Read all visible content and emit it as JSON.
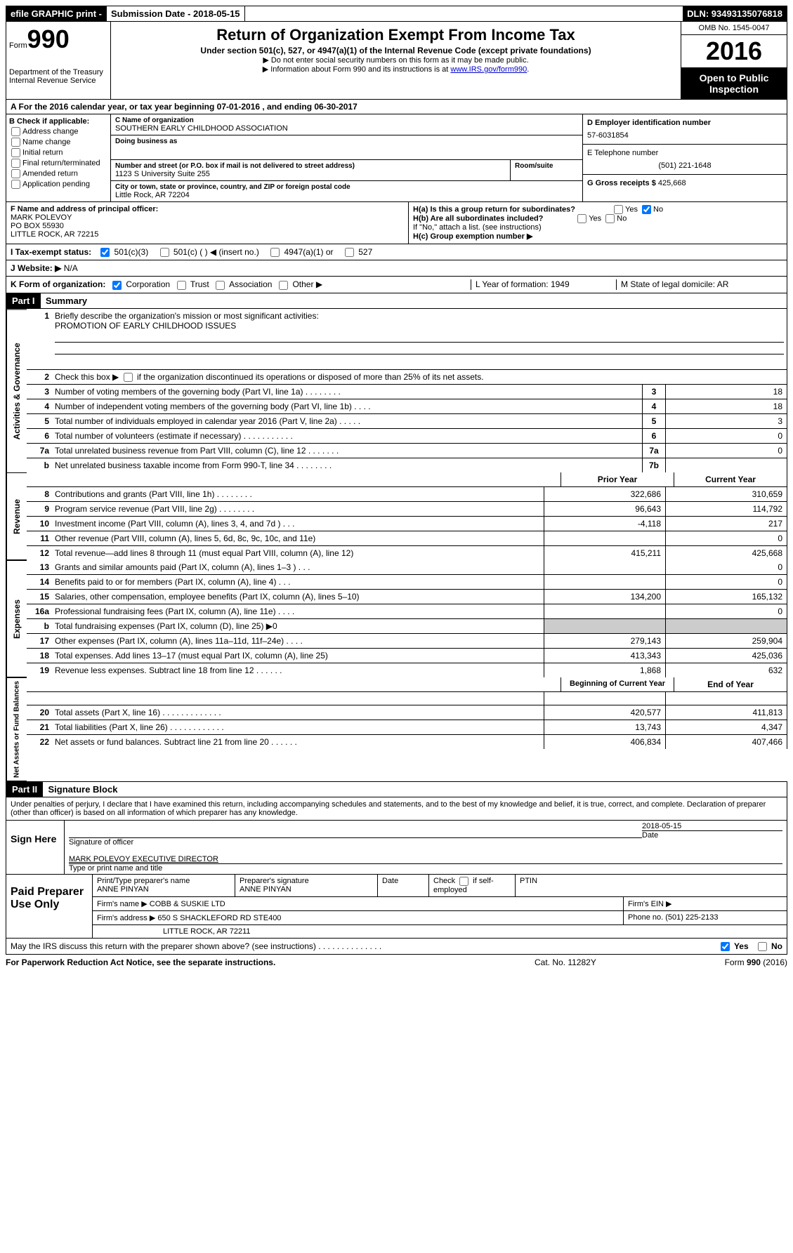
{
  "top": {
    "efile": "efile GRAPHIC print -",
    "submission_label": "Submission Date - 2018-05-15",
    "dln": "DLN: 93493135076818"
  },
  "header": {
    "form_prefix": "Form",
    "form_number": "990",
    "dept1": "Department of the Treasury",
    "dept2": "Internal Revenue Service",
    "title": "Return of Organization Exempt From Income Tax",
    "subtitle": "Under section 501(c), 527, or 4947(a)(1) of the Internal Revenue Code (except private foundations)",
    "note1": "▶ Do not enter social security numbers on this form as it may be made public.",
    "note2_pre": "▶ Information about Form 990 and its instructions is at ",
    "note2_link": "www.IRS.gov/form990",
    "omb": "OMB No. 1545-0047",
    "year": "2016",
    "open1": "Open to Public",
    "open2": "Inspection"
  },
  "section_a": "A  For the 2016 calendar year, or tax year beginning 07-01-2016   , and ending 06-30-2017",
  "box_b": {
    "title": "B Check if applicable:",
    "opts": [
      "Address change",
      "Name change",
      "Initial return",
      "Final return/terminated",
      "Amended return",
      "Application pending"
    ]
  },
  "box_c": {
    "name_label": "C Name of organization",
    "name": "SOUTHERN EARLY CHILDHOOD ASSOCIATION",
    "dba_label": "Doing business as",
    "street_label": "Number and street (or P.O. box if mail is not delivered to street address)",
    "room_label": "Room/suite",
    "street": "1123 S University Suite 255",
    "city_label": "City or town, state or province, country, and ZIP or foreign postal code",
    "city": "Little Rock, AR  72204"
  },
  "box_d": {
    "ein_label": "D Employer identification number",
    "ein": "57-6031854",
    "phone_label": "E Telephone number",
    "phone": "(501) 221-1648",
    "gross_label": "G Gross receipts $ ",
    "gross": "425,668"
  },
  "box_f": {
    "label": "F  Name and address of principal officer:",
    "name": "MARK POLEVOY",
    "addr1": "PO BOX 55930",
    "addr2": "LITTLE ROCK, AR  72215"
  },
  "box_h": {
    "ha": "H(a)  Is this a group return for subordinates?",
    "hb": "H(b)  Are all subordinates included?",
    "hb_note": "If \"No,\" attach a list. (see instructions)",
    "hc": "H(c)  Group exemption number ▶",
    "yes": "Yes",
    "no": "No"
  },
  "row_i": {
    "label": "I  Tax-exempt status:",
    "opt1": "501(c)(3)",
    "opt2": "501(c) (   ) ◀ (insert no.)",
    "opt3": "4947(a)(1) or",
    "opt4": "527"
  },
  "row_j": {
    "label": "J  Website: ▶",
    "val": "N/A"
  },
  "row_k": {
    "label": "K Form of organization:",
    "opts": [
      "Corporation",
      "Trust",
      "Association",
      "Other ▶"
    ],
    "l": "L Year of formation: 1949",
    "m": "M State of legal domicile: AR"
  },
  "part1": {
    "header": "Part I",
    "title": "Summary",
    "side1": "Activities & Governance",
    "side2": "Revenue",
    "side3": "Expenses",
    "side4": "Net Assets or Fund Balances",
    "line1_label": "Briefly describe the organization's mission or most significant activities:",
    "line1_val": "PROMOTION OF EARLY CHILDHOOD ISSUES",
    "line2": "Check this box ▶  if the organization discontinued its operations or disposed of more than 25% of its net assets.",
    "lines_gov": [
      {
        "n": "3",
        "d": "Number of voting members of the governing body (Part VI, line 1a)   .    .    .    .    .    .    .    .",
        "b": "3",
        "v": "18"
      },
      {
        "n": "4",
        "d": "Number of independent voting members of the governing body (Part VI, line 1b)   .    .    .    .",
        "b": "4",
        "v": "18"
      },
      {
        "n": "5",
        "d": "Total number of individuals employed in calendar year 2016 (Part V, line 2a)   .    .    .    .    .",
        "b": "5",
        "v": "3"
      },
      {
        "n": "6",
        "d": "Total number of volunteers (estimate if necessary)   .    .    .    .    .    .    .    .    .    .    .",
        "b": "6",
        "v": "0"
      },
      {
        "n": "7a",
        "d": "Total unrelated business revenue from Part VIII, column (C), line 12   .    .    .    .    .    .    .",
        "b": "7a",
        "v": "0"
      },
      {
        "n": "b",
        "d": "Net unrelated business taxable income from Form 990-T, line 34   .    .    .    .    .    .    .    .",
        "b": "7b",
        "v": ""
      }
    ],
    "col_prior": "Prior Year",
    "col_current": "Current Year",
    "lines_rev": [
      {
        "n": "8",
        "d": "Contributions and grants (Part VIII, line 1h)   .    .    .    .    .    .    .    .",
        "p": "322,686",
        "c": "310,659"
      },
      {
        "n": "9",
        "d": "Program service revenue (Part VIII, line 2g)   .    .    .    .    .    .    .    .",
        "p": "96,643",
        "c": "114,792"
      },
      {
        "n": "10",
        "d": "Investment income (Part VIII, column (A), lines 3, 4, and 7d )   .    .    .",
        "p": "-4,118",
        "c": "217"
      },
      {
        "n": "11",
        "d": "Other revenue (Part VIII, column (A), lines 5, 6d, 8c, 9c, 10c, and 11e)",
        "p": "",
        "c": "0"
      },
      {
        "n": "12",
        "d": "Total revenue—add lines 8 through 11 (must equal Part VIII, column (A), line 12)",
        "p": "415,211",
        "c": "425,668"
      }
    ],
    "lines_exp": [
      {
        "n": "13",
        "d": "Grants and similar amounts paid (Part IX, column (A), lines 1–3 )   .    .    .",
        "p": "",
        "c": "0"
      },
      {
        "n": "14",
        "d": "Benefits paid to or for members (Part IX, column (A), line 4)   .    .    .",
        "p": "",
        "c": "0"
      },
      {
        "n": "15",
        "d": "Salaries, other compensation, employee benefits (Part IX, column (A), lines 5–10)",
        "p": "134,200",
        "c": "165,132"
      },
      {
        "n": "16a",
        "d": "Professional fundraising fees (Part IX, column (A), line 11e)   .    .    .    .",
        "p": "",
        "c": "0"
      },
      {
        "n": "b",
        "d": "Total fundraising expenses (Part IX, column (D), line 25) ▶0",
        "p": "gray",
        "c": "gray"
      },
      {
        "n": "17",
        "d": "Other expenses (Part IX, column (A), lines 11a–11d, 11f–24e)   .    .    .    .",
        "p": "279,143",
        "c": "259,904"
      },
      {
        "n": "18",
        "d": "Total expenses. Add lines 13–17 (must equal Part IX, column (A), line 25)",
        "p": "413,343",
        "c": "425,036"
      },
      {
        "n": "19",
        "d": "Revenue less expenses. Subtract line 18 from line 12   .    .    .    .    .    .",
        "p": "1,868",
        "c": "632"
      }
    ],
    "col_begin": "Beginning of Current Year",
    "col_end": "End of Year",
    "lines_net": [
      {
        "n": "20",
        "d": "Total assets (Part X, line 16)   .    .    .    .    .    .    .    .    .    .    .    .    .",
        "p": "420,577",
        "c": "411,813"
      },
      {
        "n": "21",
        "d": "Total liabilities (Part X, line 26)   .    .    .    .    .    .    .    .    .    .    .    .",
        "p": "13,743",
        "c": "4,347"
      },
      {
        "n": "22",
        "d": "Net assets or fund balances. Subtract line 21 from line 20 .    .    .    .    .    .",
        "p": "406,834",
        "c": "407,466"
      }
    ]
  },
  "part2": {
    "header": "Part II",
    "title": "Signature Block",
    "perjury": "Under penalties of perjury, I declare that I have examined this return, including accompanying schedules and statements, and to the best of my knowledge and belief, it is true, correct, and complete. Declaration of preparer (other than officer) is based on all information of which preparer has any knowledge.",
    "sign_here": "Sign Here",
    "sig_date": "2018-05-15",
    "sig_label": "Signature of officer",
    "date_label": "Date",
    "officer_name": "MARK POLEVOY EXECUTIVE DIRECTOR",
    "name_label": "Type or print name and title",
    "paid_prep": "Paid Preparer Use Only",
    "prep_name_label": "Print/Type preparer's name",
    "prep_name": "ANNE PINYAN",
    "prep_sig_label": "Preparer's signature",
    "prep_sig": "ANNE PINYAN",
    "prep_date_label": "Date",
    "self_emp": "Check  if self-employed",
    "ptin_label": "PTIN",
    "firm_name_label": "Firm's name      ▶",
    "firm_name": "COBB & SUSKIE LTD",
    "firm_ein_label": "Firm's EIN ▶",
    "firm_addr_label": "Firm's address ▶",
    "firm_addr1": "650 S SHACKLEFORD RD STE400",
    "firm_addr2": "LITTLE ROCK, AR  72211",
    "firm_phone_label": "Phone no.",
    "firm_phone": "(501) 225-2133",
    "discuss": "May the IRS discuss this return with the preparer shown above? (see instructions)   .    .    .    .    .    .    .    .    .    .    .    .    .    .",
    "yes": "Yes",
    "no": "No"
  },
  "footer": {
    "paperwork": "For Paperwork Reduction Act Notice, see the separate instructions.",
    "cat": "Cat. No. 11282Y",
    "form": "Form 990 (2016)"
  }
}
